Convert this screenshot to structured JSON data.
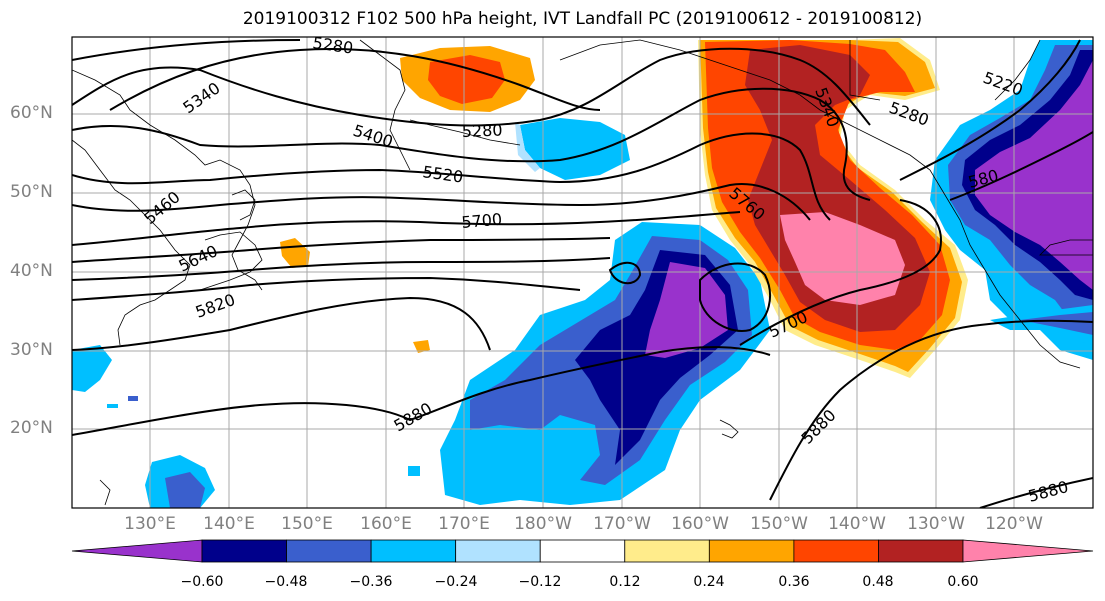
{
  "title": "2019100312 F102 500 hPa height, IVT Landfall PC (2019100612 - 2019100812)",
  "map": {
    "lat_labels": [
      "60°N",
      "50°N",
      "40°N",
      "30°N",
      "20°N"
    ],
    "lon_labels": [
      "130°E",
      "140°E",
      "150°E",
      "160°E",
      "170°E",
      "180°W",
      "170°W",
      "160°W",
      "150°W",
      "140°W",
      "130°W",
      "120°W"
    ],
    "contour_labels": [
      "5280",
      "5280",
      "5340",
      "5400",
      "5460",
      "5520",
      "5640",
      "5700",
      "5820",
      "5880",
      "5280",
      "5340",
      "5760",
      "5700",
      "5880",
      "5880",
      "5220",
      "580"
    ]
  },
  "colorbar": {
    "ticks": [
      "−0.60",
      "−0.48",
      "−0.36",
      "−0.24",
      "−0.12",
      "0.12",
      "0.24",
      "0.36",
      "0.48",
      "0.60"
    ],
    "colors": [
      "#9932cc",
      "#00008b",
      "#3a5fcd",
      "#00bfff",
      "#b0e2ff",
      "#ffffff",
      "#ffec8b",
      "#ffa500",
      "#ff4500",
      "#b22222",
      "#ff82ab"
    ]
  }
}
